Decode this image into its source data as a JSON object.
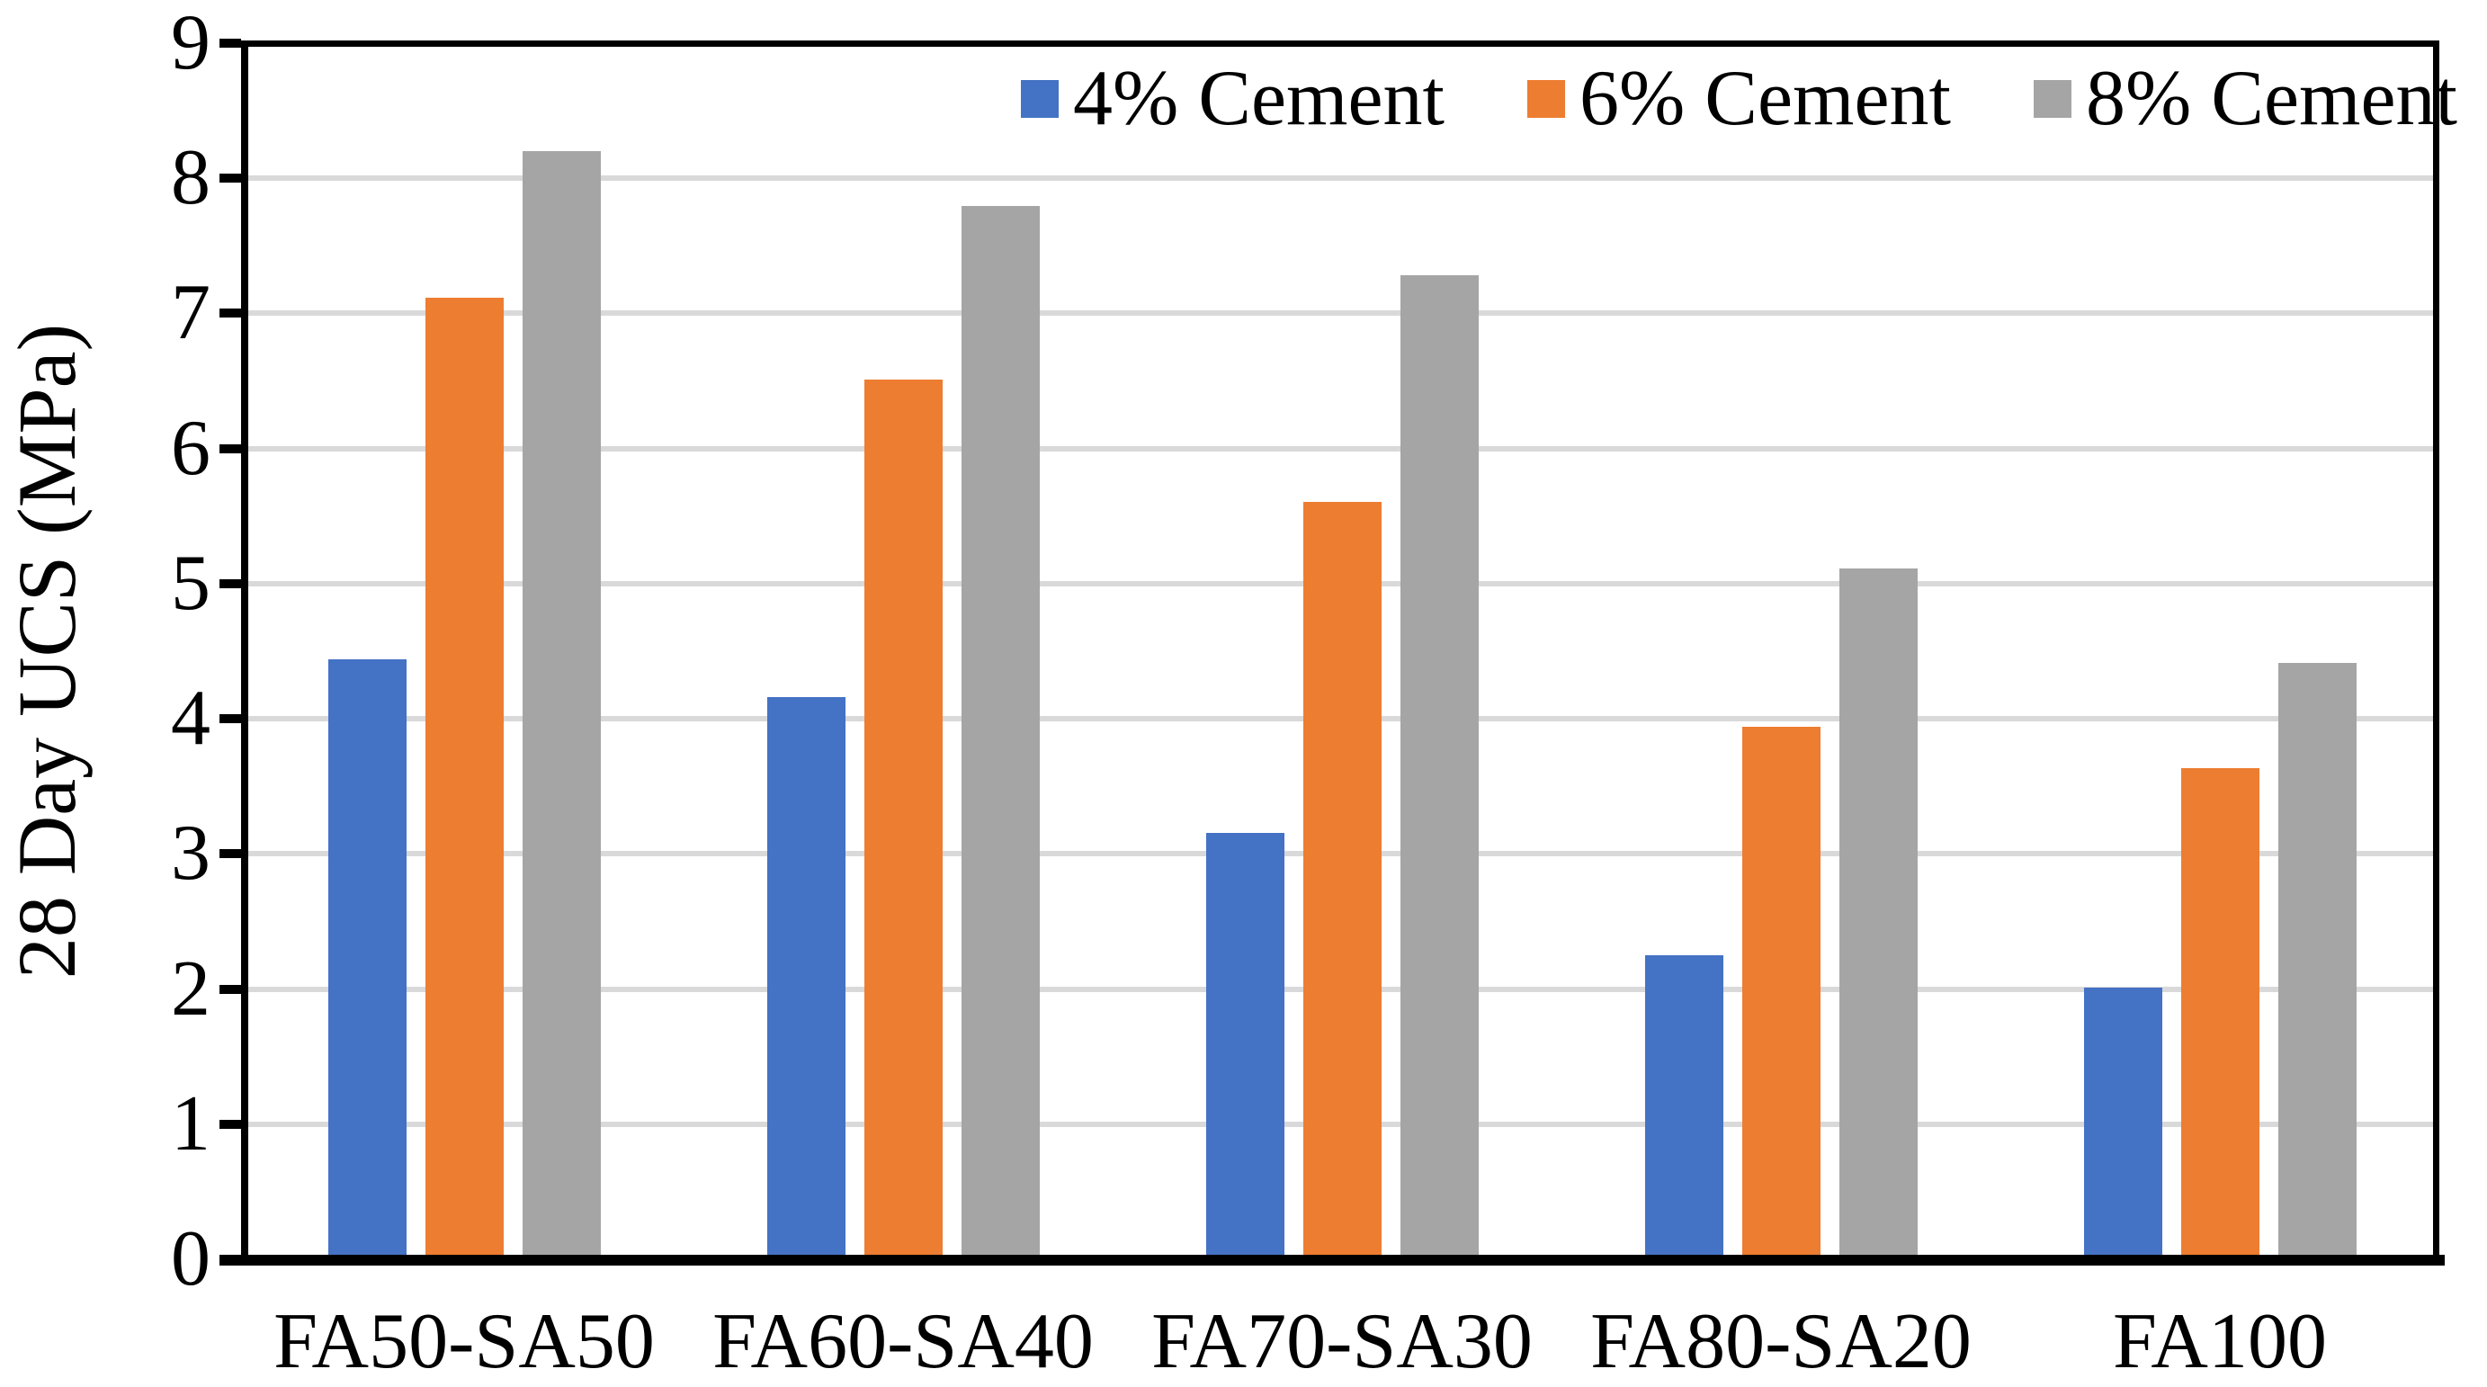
{
  "chart_data": {
    "type": "bar",
    "title": "",
    "xlabel": "",
    "ylabel": "28 Day UCS (MPa)",
    "ylim": [
      0,
      9
    ],
    "ytick_step": 1,
    "ytick_labels": [
      "0",
      "1",
      "2",
      "3",
      "4",
      "5",
      "6",
      "7",
      "8",
      "9"
    ],
    "grid": "horizontal gridlines on",
    "legend_position": "top-right inside plot",
    "categories": [
      "FA50-SA50",
      "FA60-SA40",
      "FA70-SA30",
      "FA80-SA20",
      "FA100"
    ],
    "series": [
      {
        "name": "4% Cement",
        "color": "#4472C4",
        "values": [
          4.45,
          4.17,
          3.16,
          2.26,
          2.02
        ]
      },
      {
        "name": "6% Cement",
        "color": "#ED7D31",
        "values": [
          7.12,
          6.52,
          5.61,
          3.95,
          3.64
        ]
      },
      {
        "name": "8% Cement",
        "color": "#A5A5A5",
        "values": [
          8.21,
          7.8,
          7.29,
          5.12,
          4.42
        ]
      }
    ],
    "axis_color": "#000000",
    "gridline_color": "#D9D9D9"
  }
}
